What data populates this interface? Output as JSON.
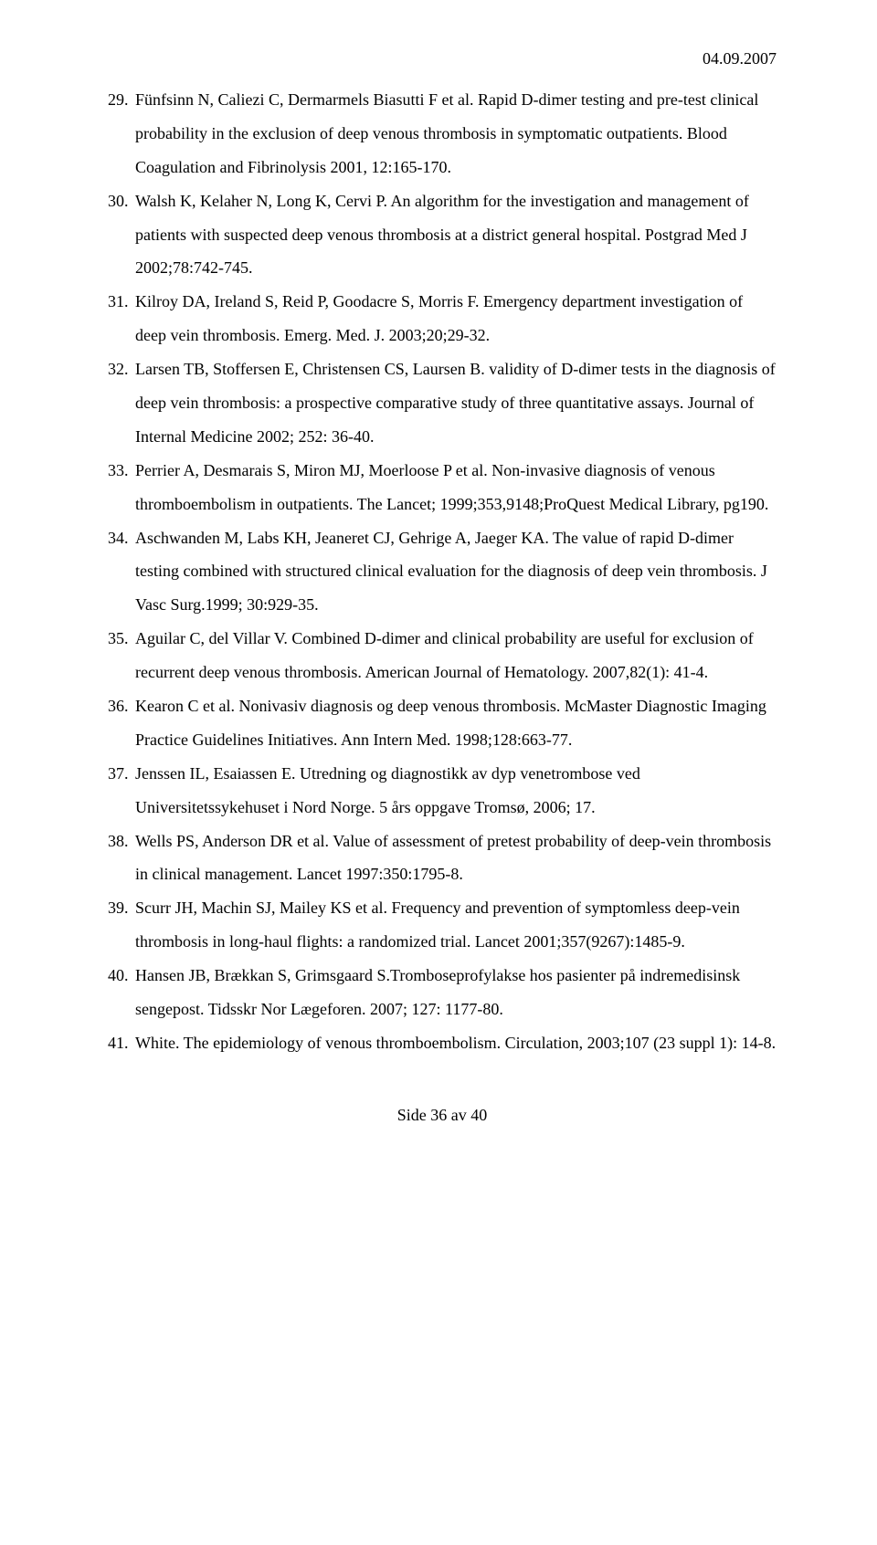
{
  "header": {
    "date": "04.09.2007"
  },
  "refs": [
    {
      "num": "29.",
      "text": "Fünfsinn N, Caliezi C, Dermarmels Biasutti F et al. Rapid D-dimer testing and pre-test clinical probability in the exclusion of deep venous thrombosis in symptomatic outpatients. Blood Coagulation and Fibrinolysis 2001, 12:165-170."
    },
    {
      "num": "30.",
      "text": "Walsh K, Kelaher N, Long K, Cervi P. An algorithm for the investigation and management of patients with suspected deep venous thrombosis at a district general hospital. Postgrad Med J 2002;78:742-745."
    },
    {
      "num": "31.",
      "text": "Kilroy DA, Ireland S, Reid P, Goodacre S, Morris F. Emergency department investigation of deep vein thrombosis. Emerg. Med. J. 2003;20;29-32."
    },
    {
      "num": "32.",
      "text": "Larsen TB, Stoffersen E, Christensen CS, Laursen B. validity of D-dimer tests in the diagnosis of deep vein thrombosis: a prospective comparative study of three quantitative assays. Journal of Internal Medicine 2002; 252: 36-40."
    },
    {
      "num": "33.",
      "text": "Perrier A, Desmarais S, Miron MJ, Moerloose P et al. Non-invasive diagnosis of venous thromboembolism in outpatients. The Lancet; 1999;353,9148;ProQuest Medical Library, pg190."
    },
    {
      "num": "34.",
      "text": "Aschwanden M, Labs KH, Jeaneret CJ, Gehrige A, Jaeger KA. The value of rapid D-dimer testing combined with structured clinical evaluation for the diagnosis of deep vein thrombosis. J Vasc Surg.1999; 30:929-35."
    },
    {
      "num": "35.",
      "text": "Aguilar C, del Villar V. Combined D-dimer and clinical probability are useful for exclusion of recurrent deep venous thrombosis. American Journal of Hematology. 2007,82(1): 41-4."
    },
    {
      "num": "36.",
      "text": "Kearon C et al. Nonivasiv diagnosis og deep venous thrombosis. McMaster Diagnostic Imaging Practice Guidelines Initiatives. Ann Intern Med. 1998;128:663-77."
    },
    {
      "num": "37.",
      "text": "Jenssen IL, Esaiassen E. Utredning og diagnostikk av dyp venetrombose ved Universitetssykehuset i Nord Norge. 5 års oppgave Tromsø, 2006; 17."
    },
    {
      "num": "38.",
      "text": "Wells PS, Anderson DR et al. Value of assessment of pretest probability of deep-vein thrombosis in clinical management. Lancet 1997:350:1795-8."
    },
    {
      "num": "39.",
      "text": "Scurr JH, Machin SJ, Mailey KS et al. Frequency and prevention of symptomless deep-vein thrombosis in long-haul flights: a randomized trial. Lancet 2001;357(9267):1485-9."
    },
    {
      "num": "40.",
      "text": "Hansen JB, Brækkan S, Grimsgaard S.Tromboseprofylakse hos pasienter på indremedisinsk sengepost. Tidsskr Nor Lægeforen. 2007; 127: 1177-80."
    },
    {
      "num": "41.",
      "text": "White. The epidemiology of venous thromboembolism. Circulation, 2003;107 (23 suppl 1): 14-8."
    }
  ],
  "footer": {
    "text": "Side 36 av 40"
  }
}
